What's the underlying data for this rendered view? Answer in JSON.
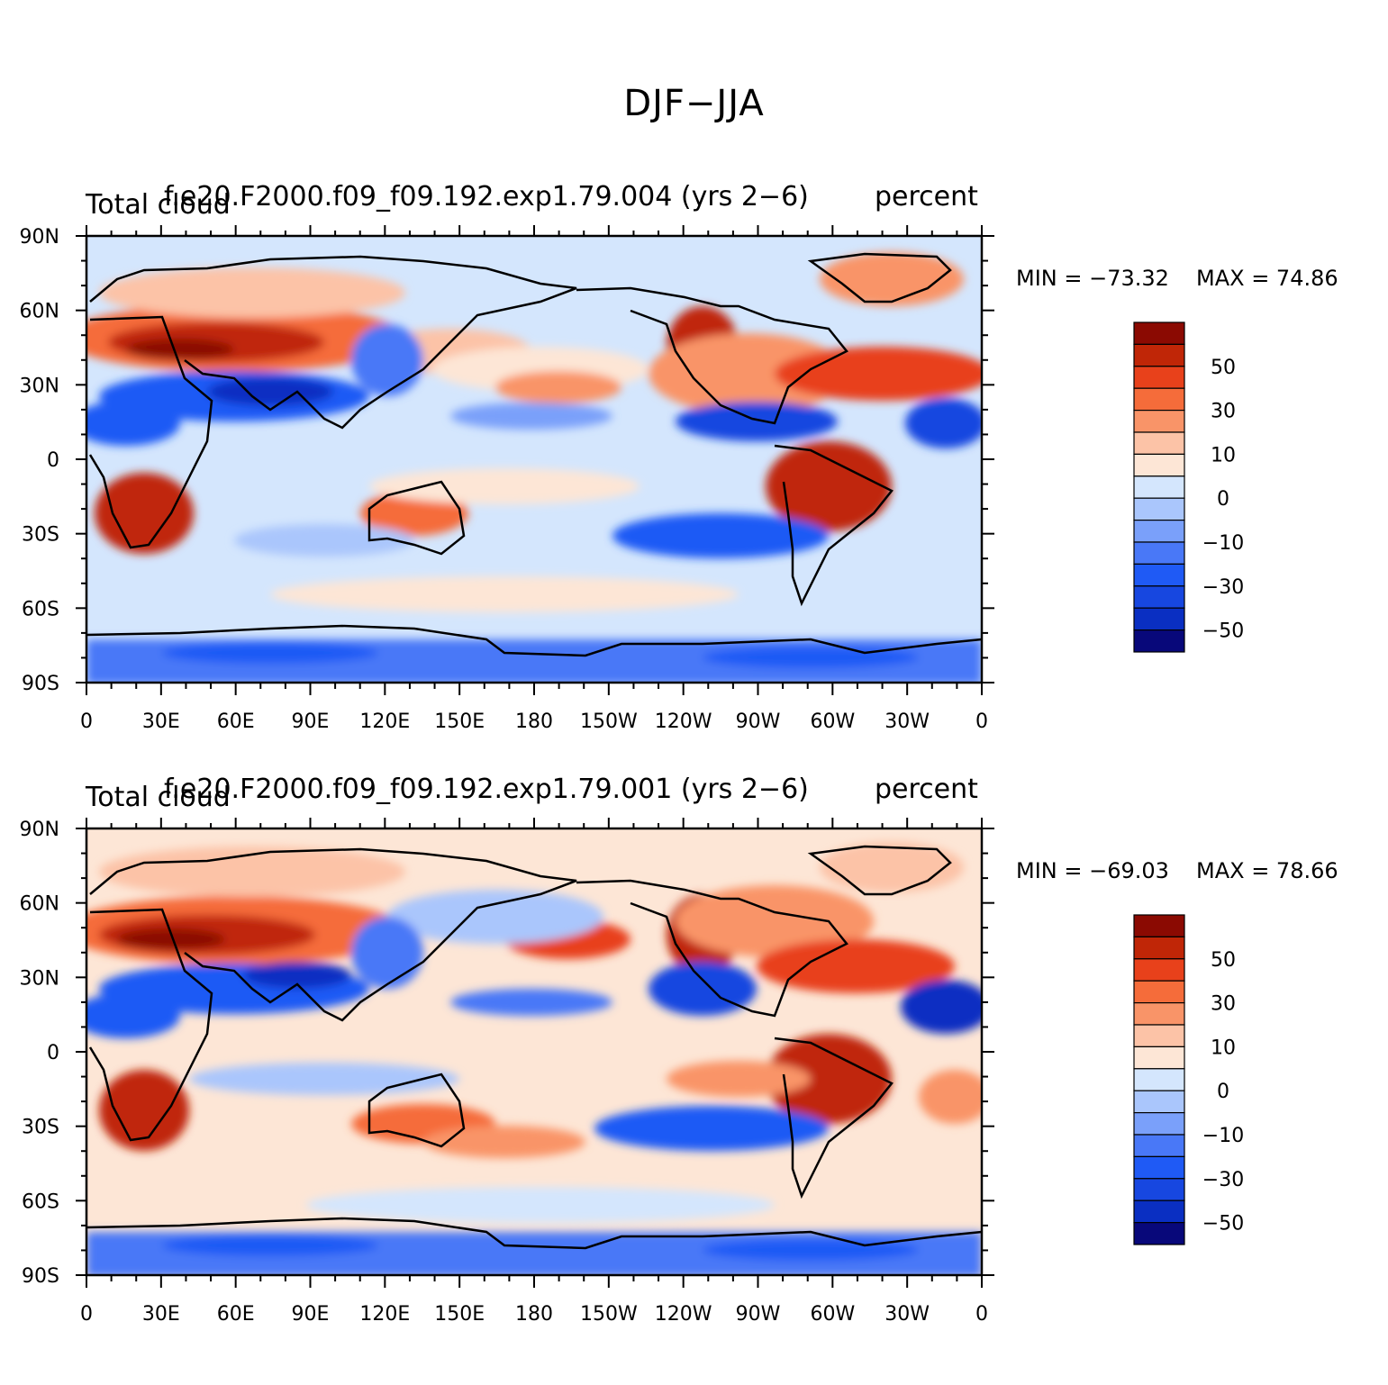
{
  "figure": {
    "title": "DJF−JJA"
  },
  "colors": {
    "levels": [
      "#08087a",
      "#0a2fc2",
      "#1747e0",
      "#1f5af5",
      "#4978f7",
      "#7aa0fa",
      "#aac6fc",
      "#d4e6fd",
      "#fde6d6",
      "#fcc3a7",
      "#f99468",
      "#f56c3a",
      "#e8411b",
      "#c02607",
      "#8b0a02"
    ]
  },
  "colorbar": {
    "labels": [
      "50",
      "30",
      "10",
      "0",
      "−10",
      "−30",
      "−50"
    ]
  },
  "chart_data": [
    {
      "type": "heatmap",
      "panel": "top",
      "title_center": "f.e20.F2000.f09_f09.192.exp1.79.004 (yrs 2−6)",
      "title_left": "Total cloud",
      "title_right": "percent",
      "min_label": "MIN = −73.32",
      "max_label": "MAX =   74.86",
      "min": -73.32,
      "max": 74.86,
      "lat_ticks": [
        "90N",
        "60N",
        "30N",
        "0",
        "30S",
        "60S",
        "90S"
      ],
      "lon_ticks": [
        "0",
        "30E",
        "60E",
        "90E",
        "120E",
        "150E",
        "180",
        "150W",
        "120W",
        "90W",
        "60W",
        "30W",
        "0"
      ],
      "lon_range": [
        0,
        360
      ],
      "lat_range": [
        -90,
        90
      ],
      "contour_levels": [
        -60,
        -50,
        -40,
        -30,
        -20,
        -10,
        -5,
        0,
        5,
        10,
        20,
        30,
        40,
        50,
        60
      ]
    },
    {
      "type": "heatmap",
      "panel": "bottom",
      "title_center": "f.e20.F2000.f09_f09.192.exp1.79.001 (yrs 2−6)",
      "title_left": "Total cloud",
      "title_right": "percent",
      "min_label": "MIN = −69.03",
      "max_label": "MAX =   78.66",
      "min": -69.03,
      "max": 78.66,
      "lat_ticks": [
        "90N",
        "60N",
        "30N",
        "0",
        "30S",
        "60S",
        "90S"
      ],
      "lon_ticks": [
        "0",
        "30E",
        "60E",
        "90E",
        "120E",
        "150E",
        "180",
        "150W",
        "120W",
        "90W",
        "60W",
        "30W",
        "0"
      ],
      "lon_range": [
        0,
        360
      ],
      "lat_range": [
        -90,
        90
      ],
      "contour_levels": [
        -60,
        -50,
        -40,
        -30,
        -20,
        -10,
        -5,
        0,
        5,
        10,
        20,
        30,
        40,
        50,
        60
      ]
    }
  ]
}
